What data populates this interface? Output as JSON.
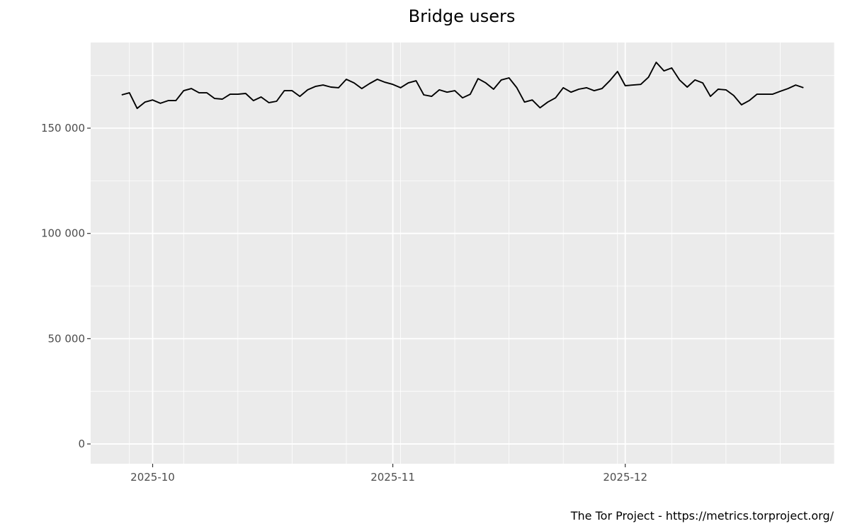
{
  "chart_data": {
    "type": "line",
    "title": "Bridge users",
    "xlabel": "",
    "ylabel": "",
    "caption": "The Tor Project - https://metrics.torproject.org/",
    "grid": true,
    "ylim": [
      -9400,
      190700
    ],
    "xlim": [
      "2025-09-23",
      "2025-12-28"
    ],
    "y_ticks": [
      0,
      50000,
      100000,
      150000
    ],
    "y_tick_labels": [
      "0",
      "50 000",
      "100 000",
      "150 000"
    ],
    "x_ticks": [
      "2025-10-01",
      "2025-11-01",
      "2025-12-01"
    ],
    "x_tick_labels": [
      "2025-10",
      "2025-11",
      "2025-12"
    ],
    "colors": {
      "panel": "#ebebeb",
      "grid": "#ffffff",
      "line": "#000000"
    },
    "x": [
      "2025-09-27",
      "2025-09-28",
      "2025-09-29",
      "2025-09-30",
      "2025-10-01",
      "2025-10-02",
      "2025-10-03",
      "2025-10-04",
      "2025-10-05",
      "2025-10-06",
      "2025-10-07",
      "2025-10-08",
      "2025-10-09",
      "2025-10-10",
      "2025-10-11",
      "2025-10-12",
      "2025-10-13",
      "2025-10-14",
      "2025-10-15",
      "2025-10-16",
      "2025-10-17",
      "2025-10-18",
      "2025-10-19",
      "2025-10-20",
      "2025-10-21",
      "2025-10-22",
      "2025-10-23",
      "2025-10-24",
      "2025-10-25",
      "2025-10-26",
      "2025-10-27",
      "2025-10-28",
      "2025-10-29",
      "2025-10-30",
      "2025-10-31",
      "2025-11-01",
      "2025-11-02",
      "2025-11-03",
      "2025-11-04",
      "2025-11-05",
      "2025-11-06",
      "2025-11-07",
      "2025-11-08",
      "2025-11-09",
      "2025-11-10",
      "2025-11-11",
      "2025-11-12",
      "2025-11-13",
      "2025-11-14",
      "2025-11-15",
      "2025-11-16",
      "2025-11-17",
      "2025-11-18",
      "2025-11-19",
      "2025-11-20",
      "2025-11-21",
      "2025-11-22",
      "2025-11-23",
      "2025-11-24",
      "2025-11-25",
      "2025-11-26",
      "2025-11-27",
      "2025-11-28",
      "2025-11-29",
      "2025-11-30",
      "2025-12-01",
      "2025-12-02",
      "2025-12-03",
      "2025-12-04",
      "2025-12-05",
      "2025-12-06",
      "2025-12-07",
      "2025-12-08",
      "2025-12-09",
      "2025-12-10",
      "2025-12-11",
      "2025-12-12",
      "2025-12-13",
      "2025-12-14",
      "2025-12-15",
      "2025-12-16",
      "2025-12-17",
      "2025-12-18",
      "2025-12-19",
      "2025-12-20",
      "2025-12-21",
      "2025-12-22",
      "2025-12-23",
      "2025-12-24"
    ],
    "y": [
      165800,
      166800,
      159400,
      162400,
      163400,
      161800,
      163100,
      163100,
      167800,
      168800,
      166800,
      166800,
      164100,
      163800,
      166100,
      166100,
      166500,
      163100,
      164800,
      162100,
      162800,
      167800,
      167800,
      165100,
      168200,
      169800,
      170500,
      169500,
      169200,
      173200,
      171500,
      168800,
      171200,
      173200,
      171800,
      170800,
      169200,
      171500,
      172500,
      165800,
      165100,
      168200,
      167100,
      167800,
      164400,
      166100,
      173500,
      171500,
      168500,
      172900,
      173900,
      169200,
      162400,
      163400,
      159700,
      162400,
      164400,
      169200,
      167100,
      168500,
      169200,
      167800,
      168800,
      172500,
      176900,
      170200,
      170500,
      170800,
      174200,
      181300,
      177200,
      178600,
      172900,
      169500,
      172900,
      171500,
      165100,
      168500,
      168200,
      165500,
      161100,
      163100,
      166100,
      166100,
      166100,
      167500,
      168800,
      170500,
      169200
    ]
  }
}
